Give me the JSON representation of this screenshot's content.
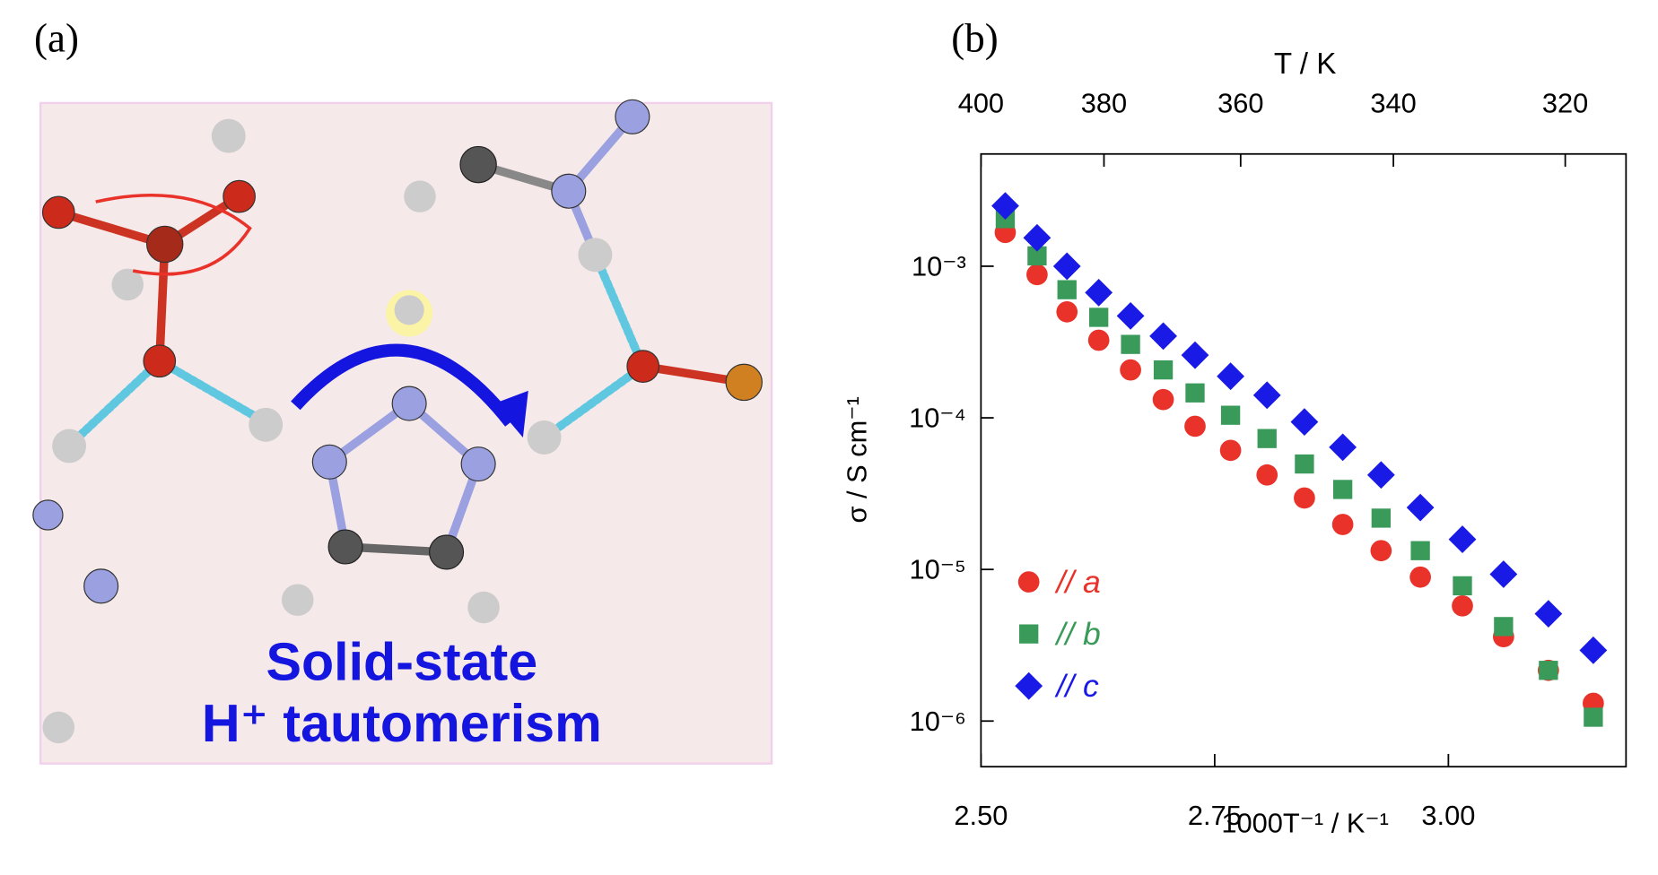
{
  "panel_labels": [
    "(a)",
    "(b)"
  ],
  "illustration": {
    "caption": [
      "Solid-state",
      "H⁺ tautomerism"
    ]
  },
  "chart_data": {
    "type": "scatter",
    "x_label": "1000T⁻¹ / K⁻¹",
    "y_label": "σ / S cm⁻¹",
    "x2_label": "T / K",
    "xlim": [
      2.5,
      3.19
    ],
    "xticks": [
      {
        "value": 2.5,
        "label": "2.50"
      },
      2.75,
      {
        "value": 3.0,
        "label": "3.00"
      }
    ],
    "x2ticks": [
      400,
      380,
      360,
      340,
      320
    ],
    "ylim": [
      5e-07,
      0.0055
    ],
    "log_y": true,
    "yticks": [
      {
        "value": 0.001,
        "label": "10⁻³"
      },
      {
        "value": 0.0001,
        "label": "10⁻⁴"
      },
      {
        "value": 1e-05,
        "label": "10⁻⁵"
      },
      {
        "value": 1e-06,
        "label": "10⁻⁶"
      }
    ],
    "x": [
      2.526,
      2.56,
      2.592,
      2.626,
      2.66,
      2.695,
      2.729,
      2.767,
      2.806,
      2.846,
      2.887,
      2.928,
      2.97,
      3.015,
      3.059,
      3.107,
      3.155
    ],
    "series": [
      {
        "name": "// a",
        "color": "#e8322a",
        "marker": "circle",
        "values": [
          0.00167,
          0.00088,
          0.0005,
          0.000325,
          0.000207,
          0.000132,
          8.8e-05,
          6.1e-05,
          4.2e-05,
          2.96e-05,
          1.98e-05,
          1.33e-05,
          8.9e-06,
          5.75e-06,
          3.6e-06,
          2.16e-06,
          1.31e-06
        ]
      },
      {
        "name": "// b",
        "color": "#3a9a5a",
        "marker": "square",
        "values": [
          0.00206,
          0.00117,
          0.0007,
          0.00046,
          0.000305,
          0.000207,
          0.000146,
          0.000104,
          7.3e-05,
          4.96e-05,
          3.37e-05,
          2.18e-05,
          1.33e-05,
          7.8e-06,
          4.2e-06,
          2.16e-06,
          1.06e-06
        ]
      },
      {
        "name": "// c",
        "color": "#1a1ae6",
        "marker": "diamond",
        "values": [
          0.0025,
          0.00154,
          0.001,
          0.00067,
          0.00047,
          0.000346,
          0.000259,
          0.000188,
          0.000141,
          9.4e-05,
          6.4e-05,
          4.2e-05,
          2.56e-05,
          1.58e-05,
          9.3e-06,
          5.1e-06,
          2.93e-06
        ]
      }
    ]
  }
}
